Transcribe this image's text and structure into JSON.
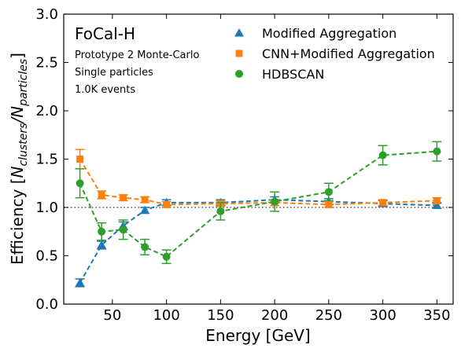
{
  "chart_data": {
    "type": "line",
    "xlabel": "Energy [GeV]",
    "ylabel_parts": {
      "pre": "Efficiency [",
      "num": "N",
      "num_sub": "clusters",
      "slash": "/",
      "den": "N",
      "den_sub": "particles",
      "post": "]"
    },
    "xlim": [
      5,
      365
    ],
    "ylim": [
      0,
      3
    ],
    "x_ticks": [
      50,
      100,
      150,
      200,
      250,
      300,
      350
    ],
    "y_ticks": [
      0.0,
      0.5,
      1.0,
      1.5,
      2.0,
      2.5,
      3.0
    ],
    "x_tick_labels": [
      "50",
      "100",
      "150",
      "200",
      "250",
      "300",
      "350"
    ],
    "y_tick_labels": [
      "0.0",
      "0.5",
      "1.0",
      "1.5",
      "2.0",
      "2.5",
      "3.0"
    ],
    "reference_line": 1.0,
    "annotations": {
      "title": "FoCal-H",
      "line1": "Prototype 2 Monte-Carlo",
      "line2": "Single particles",
      "line3": "1.0K events"
    },
    "legend_position": "top-right",
    "series": [
      {
        "name": "Modified Aggregation",
        "color": "#1f77b4",
        "marker": "triangle",
        "x": [
          20,
          40,
          60,
          80,
          100,
          150,
          200,
          250,
          300,
          350
        ],
        "y": [
          0.22,
          0.61,
          0.81,
          0.97,
          1.05,
          1.05,
          1.08,
          1.06,
          1.04,
          1.02
        ],
        "err": [
          0.04,
          0.04,
          0.04,
          0.03,
          0.03,
          0.03,
          0.03,
          0.03,
          0.03,
          0.03
        ]
      },
      {
        "name": "CNN+Modified Aggregation",
        "color": "#ff7f0e",
        "marker": "square",
        "x": [
          20,
          40,
          60,
          80,
          100,
          150,
          200,
          250,
          300,
          350
        ],
        "y": [
          1.5,
          1.13,
          1.1,
          1.08,
          1.03,
          1.04,
          1.05,
          1.03,
          1.05,
          1.07
        ],
        "err": [
          0.1,
          0.04,
          0.03,
          0.03,
          0.03,
          0.03,
          0.03,
          0.03,
          0.03,
          0.03
        ]
      },
      {
        "name": "HDBSCAN",
        "color": "#2ca02c",
        "marker": "circle",
        "x": [
          20,
          40,
          60,
          80,
          100,
          150,
          200,
          250,
          300,
          350
        ],
        "y": [
          1.25,
          0.75,
          0.77,
          0.59,
          0.49,
          0.96,
          1.06,
          1.16,
          1.54,
          1.58
        ],
        "err": [
          0.15,
          0.09,
          0.1,
          0.08,
          0.07,
          0.09,
          0.1,
          0.09,
          0.1,
          0.1
        ]
      }
    ]
  }
}
